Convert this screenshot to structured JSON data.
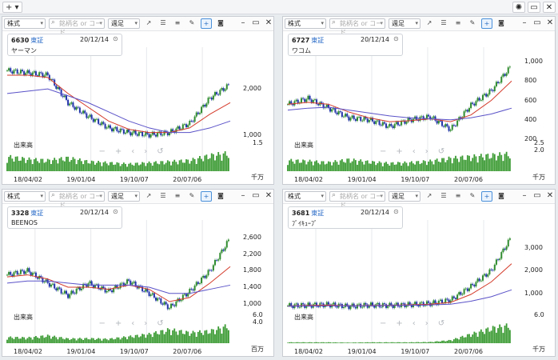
{
  "topbar": {
    "add": "+ ▾",
    "sun": "✺",
    "restore": "▭",
    "close": "✕"
  },
  "colors": {
    "up": "#2e8b2e",
    "down": "#2233aa",
    "ma_short": "#d43a2a",
    "ma_long": "#5a52c8",
    "vol": "#3a9a32"
  },
  "toolbar": {
    "market": "株式",
    "search_placeholder": "銘柄名 or コード",
    "period": "週足"
  },
  "panels": [
    {
      "code": "6630",
      "market": "東証",
      "date": "20/12/14",
      "name": "ヤーマン",
      "yticks": [
        "2,000",
        "1,000",
        "1.5"
      ],
      "xticks": [
        "18/04/02",
        "19/01/04",
        "19/10/07",
        "20/07/06"
      ],
      "vol_label": "出来高",
      "vol_unit": "千万",
      "chart_data": {
        "type": "candlestick",
        "x": [
          "18/04/02",
          "18/07/02",
          "18/10/01",
          "19/01/04",
          "19/04/01",
          "19/07/01",
          "19/10/07",
          "20/01/06",
          "20/04/06",
          "20/07/06",
          "20/10/05",
          "20/12/14"
        ],
        "close": [
          2400,
          2350,
          2300,
          1700,
          1400,
          1150,
          1050,
          1000,
          1050,
          1250,
          1800,
          2100
        ],
        "ma_short": [
          2300,
          2300,
          2250,
          1900,
          1600,
          1300,
          1120,
          1050,
          1050,
          1150,
          1450,
          1700
        ],
        "ma_long": [
          1900,
          1950,
          2000,
          1850,
          1700,
          1500,
          1300,
          1150,
          1050,
          1050,
          1150,
          1300
        ],
        "ylim": [
          800,
          2700
        ],
        "volume": [
          1.2,
          1.0,
          0.9,
          1.1,
          0.8,
          0.7,
          0.6,
          0.7,
          0.8,
          0.9,
          1.3,
          1.5
        ],
        "vol_max": 1.5
      }
    },
    {
      "code": "6727",
      "market": "東証",
      "date": "20/12/14",
      "name": "ワコム",
      "yticks": [
        "1,000",
        "800",
        "600",
        "400",
        "200",
        "2.5",
        "2.0"
      ],
      "xticks": [
        "18/04/02",
        "19/01/04",
        "19/10/07",
        "20/07/06"
      ],
      "vol_label": "出来高",
      "vol_unit": "千万",
      "chart_data": {
        "type": "candlestick",
        "x": [
          "18/04/02",
          "18/07/02",
          "18/10/01",
          "19/01/04",
          "19/04/01",
          "19/07/01",
          "19/10/07",
          "20/01/06",
          "20/04/06",
          "20/07/06",
          "20/10/05",
          "20/12/14"
        ],
        "close": [
          560,
          620,
          520,
          420,
          400,
          330,
          400,
          430,
          300,
          550,
          700,
          960
        ],
        "ma_short": [
          560,
          580,
          560,
          480,
          420,
          380,
          390,
          410,
          380,
          450,
          600,
          800
        ],
        "ma_long": [
          500,
          520,
          530,
          500,
          470,
          440,
          420,
          410,
          400,
          420,
          460,
          520
        ],
        "ylim": [
          150,
          1050
        ],
        "volume": [
          1.5,
          1.4,
          1.2,
          1.6,
          1.3,
          1.1,
          1.2,
          1.4,
          1.8,
          2.0,
          2.2,
          2.4
        ],
        "vol_max": 2.5
      }
    },
    {
      "code": "3328",
      "market": "東証",
      "date": "20/12/14",
      "name": "BEENOS",
      "yticks": [
        "2,600",
        "2,200",
        "1,800",
        "1,400",
        "1,000",
        "6.0",
        "4.0"
      ],
      "xticks": [
        "18/04/02",
        "19/01/04",
        "19/10/07",
        "20/07/06"
      ],
      "vol_label": "出来高",
      "vol_unit": "百万",
      "chart_data": {
        "type": "candlestick",
        "x": [
          "18/04/02",
          "18/07/02",
          "18/10/01",
          "19/01/04",
          "19/04/01",
          "19/07/01",
          "19/10/07",
          "20/01/06",
          "20/04/06",
          "20/07/06",
          "20/10/05",
          "20/12/14"
        ],
        "close": [
          1700,
          1800,
          1500,
          1200,
          1500,
          1300,
          1550,
          1250,
          900,
          1300,
          1800,
          2600
        ],
        "ma_short": [
          1650,
          1700,
          1600,
          1400,
          1400,
          1350,
          1450,
          1350,
          1050,
          1150,
          1500,
          1900
        ],
        "ma_long": [
          1500,
          1550,
          1550,
          1500,
          1450,
          1450,
          1450,
          1400,
          1250,
          1250,
          1350,
          1450
        ],
        "ylim": [
          700,
          2800
        ],
        "volume": [
          2.0,
          1.8,
          2.5,
          1.5,
          1.6,
          1.4,
          2.2,
          3.0,
          4.5,
          3.5,
          4.0,
          6.0
        ],
        "vol_max": 6.0
      }
    },
    {
      "code": "3681",
      "market": "東証",
      "date": "20/12/14",
      "name": "ﾌﾞｲｷｭｰﾌﾞ",
      "yticks": [
        "3,000",
        "2,000",
        "1,000",
        "6.0"
      ],
      "xticks": [
        "18/04/02",
        "19/01/04",
        "19/10/07",
        "20/07/06"
      ],
      "vol_label": "出来高",
      "vol_unit": "千万",
      "chart_data": {
        "type": "candlestick",
        "x": [
          "18/04/02",
          "18/07/02",
          "18/10/01",
          "19/01/04",
          "19/04/01",
          "19/07/01",
          "19/10/07",
          "20/01/06",
          "20/04/06",
          "20/07/06",
          "20/10/05",
          "20/12/14"
        ],
        "close": [
          450,
          470,
          500,
          420,
          480,
          460,
          500,
          550,
          700,
          1300,
          2000,
          3500
        ],
        "ma_short": [
          440,
          460,
          480,
          450,
          460,
          470,
          490,
          520,
          600,
          950,
          1500,
          2300
        ],
        "ma_long": [
          430,
          440,
          450,
          450,
          450,
          460,
          470,
          490,
          520,
          650,
          850,
          1150
        ],
        "ylim": [
          0,
          3800
        ],
        "volume": [
          0.3,
          0.3,
          0.3,
          0.2,
          0.3,
          0.3,
          0.3,
          0.4,
          1.0,
          3.0,
          5.0,
          6.0
        ],
        "vol_max": 6.0
      }
    }
  ]
}
